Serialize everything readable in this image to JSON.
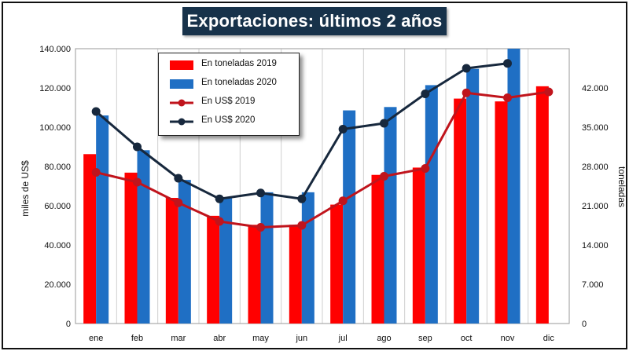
{
  "chart_data": {
    "type": "bar+line",
    "title": "Exportaciones: últimos 2 años",
    "categories": [
      "ene",
      "feb",
      "mar",
      "abr",
      "may",
      "jun",
      "jul",
      "ago",
      "sep",
      "oct",
      "nov",
      "dic"
    ],
    "ylabel_left": "miles de US$",
    "ylabel_right": "toneladas",
    "y_left": {
      "min": 0,
      "max": 140000,
      "step": 20000,
      "tick_labels": [
        "0",
        "20.000",
        "40.000",
        "60.000",
        "80.000",
        "100.000",
        "120.000",
        "140.000"
      ]
    },
    "y_right": {
      "min": 0,
      "max": 49000,
      "step": 7000,
      "tick_labels": [
        "0",
        "7.000",
        "14.000",
        "21.000",
        "28.000",
        "35.000",
        "42.000"
      ]
    },
    "grid": "vertical",
    "legend_position": "top-left",
    "series": [
      {
        "name": "En toneladas 2019",
        "type": "bar",
        "axis": "right",
        "color": "#ff0000",
        "values": [
          30200,
          26900,
          22400,
          19200,
          17600,
          17600,
          21200,
          26500,
          27800,
          40100,
          39600,
          42300
        ]
      },
      {
        "name": "En toneladas 2020",
        "type": "bar",
        "axis": "right",
        "color": "#1f6fc4",
        "values": [
          37100,
          30900,
          25600,
          22400,
          23400,
          23400,
          38000,
          38600,
          42500,
          45400,
          49000,
          null
        ]
      },
      {
        "name": "En US$ 2019",
        "type": "line",
        "axis": "left",
        "color": "#c0141c",
        "values": [
          77000,
          72000,
          61500,
          52000,
          49000,
          50000,
          62500,
          75000,
          79000,
          117500,
          115000,
          118000
        ]
      },
      {
        "name": "En US$ 2020",
        "type": "line",
        "axis": "left",
        "color": "#17283d",
        "values": [
          108000,
          90000,
          74000,
          63500,
          66500,
          63500,
          99000,
          102000,
          117000,
          130000,
          132500,
          null
        ]
      }
    ]
  }
}
